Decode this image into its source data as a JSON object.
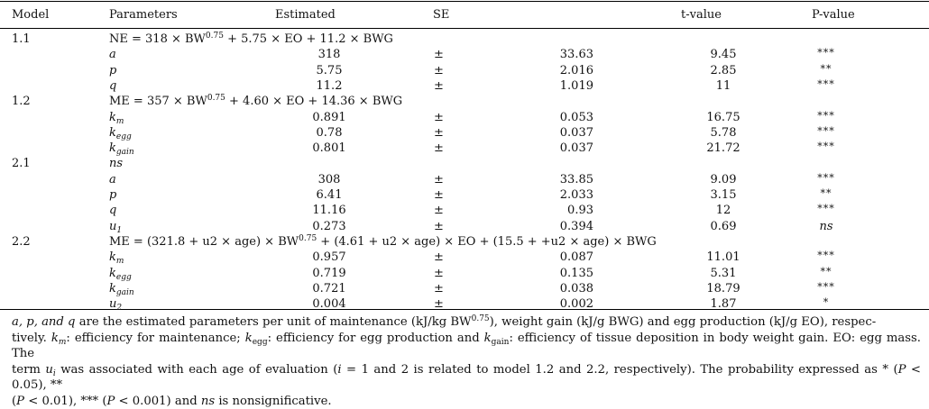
{
  "headers": {
    "model": "Model",
    "parameters": "Parameters",
    "estimated": "Estimated",
    "se": "SE",
    "t_value": "t-value",
    "p_value": "P-value"
  },
  "pm": "±",
  "models": [
    {
      "id": "1.1",
      "equation": "NE = 318 × BW",
      "equation_sup": "0.75",
      "equation_rest": " + 5.75 × EO + 11.2 × BWG",
      "rows": [
        {
          "param": "a",
          "sub": "",
          "est": "318",
          "se": "33.63",
          "t": "9.45",
          "p": "***"
        },
        {
          "param": "p",
          "sub": "",
          "est": "5.75",
          "se": "2.016",
          "t": "2.85",
          "p": "**"
        },
        {
          "param": "q",
          "sub": "",
          "est": "11.2",
          "se": "1.019",
          "t": "11",
          "p": "***"
        }
      ]
    },
    {
      "id": "1.2",
      "equation": "ME = 357 × BW",
      "equation_sup": "0.75",
      "equation_rest": " + 4.60 × EO + 14.36 × BWG",
      "rows": [
        {
          "param": "k",
          "sub": "m",
          "est": "0.891",
          "se": "0.053",
          "t": "16.75",
          "p": "***"
        },
        {
          "param": "k",
          "sub": "egg",
          "est": "0.78",
          "se": "0.037",
          "t": "5.78",
          "p": "***"
        },
        {
          "param": "k",
          "sub": "gain",
          "est": "0.801",
          "se": "0.037",
          "t": "21.72",
          "p": "***"
        }
      ]
    },
    {
      "id": "2.1",
      "equation": "ns",
      "equation_sup": "",
      "equation_rest": "",
      "rows": [
        {
          "param": "a",
          "sub": "",
          "est": "308",
          "se": "33.85",
          "t": "9.09",
          "p": "***"
        },
        {
          "param": "p",
          "sub": "",
          "est": "6.41",
          "se": "2.033",
          "t": "3.15",
          "p": "**"
        },
        {
          "param": "q",
          "sub": "",
          "est": "11.16",
          "se": "0.93",
          "t": "12",
          "p": "***"
        },
        {
          "param": "u",
          "sub": "1",
          "est": "0.273",
          "se": "0.394",
          "t": "0.69",
          "p": "ns"
        }
      ]
    },
    {
      "id": "2.2",
      "equation": "ME = (321.8 + u2 × age) × BW",
      "equation_sup": "0.75",
      "equation_rest": " + (4.61 + u2 × age) × EO + (15.5 + +u2 × age) × BWG",
      "rows": [
        {
          "param": "k",
          "sub": "m",
          "est": "0.957",
          "se": "0.087",
          "t": "11.01",
          "p": "***"
        },
        {
          "param": "k",
          "sub": "egg",
          "est": "0.719",
          "se": "0.135",
          "t": "5.31",
          "p": "**"
        },
        {
          "param": "k",
          "sub": "gain",
          "est": "0.721",
          "se": "0.038",
          "t": "18.79",
          "p": "***"
        },
        {
          "param": "u",
          "sub": "2",
          "est": "0.004",
          "se": "0.002",
          "t": "1.87",
          "p": "*"
        }
      ]
    }
  ],
  "footnote": {
    "l1a": "a, p, and q",
    "l1b": " are the estimated parameters per unit of maintenance (kJ/kg BW",
    "l1sup": "0.75",
    "l1c": "), weight gain (kJ/g BWG) and egg production (kJ/g EO), respec-",
    "l2a": "tively. ",
    "km": "k",
    "km_sub": "m",
    "l2b": ": efficiency for maintenance; ",
    "kegg": "k",
    "kegg_sub": "egg",
    "l2c": ": efficiency for egg production and ",
    "kgain": "k",
    "kgain_sub": "gain",
    "l2d": ": efficiency of tissue deposition in body weight gain. EO: egg mass. The",
    "l3a": "term ",
    "ui": "u",
    "ui_sub": "i",
    "l3b": " was associated with each age of evaluation (",
    "i_eq": "i",
    "l3c": " = 1 and 2 is related to model 1.2 and 2.2, respectively). The probability expressed as * (",
    "p1": "P",
    "l3d": " < 0.05), **",
    "l4a": "(",
    "p2": "P",
    "l4b": " < 0.01), *** (",
    "p3": "P",
    "l4c": " < 0.001) and ",
    "ns": "ns",
    "l4d": " is nonsignificative."
  }
}
